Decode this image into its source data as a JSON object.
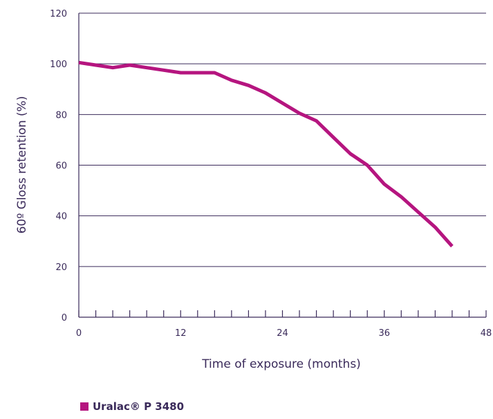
{
  "chart_data": {
    "type": "line",
    "title": "",
    "xlabel": "Time of exposure (months)",
    "ylabel": "60º Gloss retention (%)",
    "xlim": [
      0,
      48
    ],
    "ylim": [
      0,
      120
    ],
    "x_ticks": [
      0,
      12,
      24,
      36,
      48
    ],
    "y_ticks": [
      0,
      20,
      40,
      60,
      80,
      100,
      120
    ],
    "x_minor_step": 2,
    "grid": "horizontal",
    "legend_position": "bottom-left",
    "series": [
      {
        "name": "Uralac® P 3480",
        "color": "#b5157f",
        "x": [
          0,
          2,
          4,
          6,
          8,
          10,
          12,
          14,
          16,
          18,
          20,
          22,
          24,
          26,
          28,
          30,
          32,
          34,
          36,
          38,
          40,
          42,
          44
        ],
        "y": [
          100.5,
          99.5,
          98.5,
          99.5,
          98.5,
          97.5,
          96.5,
          96.5,
          96.5,
          93.5,
          91.5,
          88.5,
          84.5,
          80.5,
          77.5,
          71,
          64.5,
          60,
          52.5,
          47.5,
          41.5,
          35.5,
          28
        ]
      }
    ]
  }
}
